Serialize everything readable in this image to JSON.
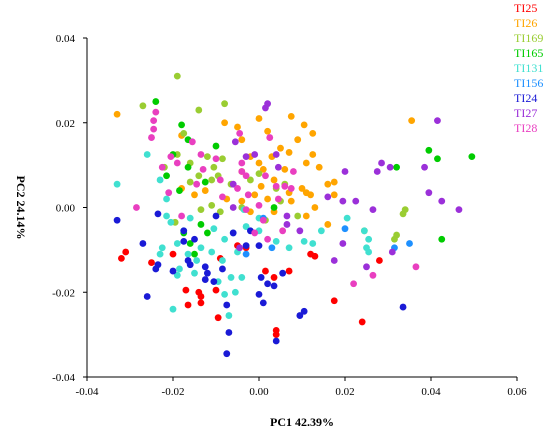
{
  "chart_data": {
    "type": "scatter",
    "xlabel": "PC1 42.39%",
    "ylabel": "PC2 24.14%",
    "xlim": [
      -0.04,
      0.06
    ],
    "ylim": [
      -0.04,
      0.04
    ],
    "x_ticks": [
      "-0.04",
      "-0.02",
      "0.00",
      "0.02",
      "0.04",
      "0.06"
    ],
    "y_ticks": [
      "0.04",
      "0.02",
      "0.00",
      "-0.02",
      "-0.04"
    ],
    "legend_position": "top-right",
    "series": [
      {
        "name": "TI25",
        "color": "#ff0000",
        "points": [
          [
            -0.032,
            -0.012
          ],
          [
            -0.031,
            -0.0105
          ],
          [
            -0.025,
            -0.013
          ],
          [
            -0.02,
            -0.011
          ],
          [
            -0.017,
            -0.0195
          ],
          [
            -0.014,
            -0.02
          ],
          [
            -0.0165,
            -0.023
          ],
          [
            -0.0135,
            -0.0225
          ],
          [
            -0.01,
            -0.0195
          ],
          [
            -0.0095,
            -0.026
          ],
          [
            -0.0135,
            -0.021
          ],
          [
            -0.005,
            -0.009
          ],
          [
            -0.003,
            -0.0095
          ],
          [
            0.0015,
            -0.015
          ],
          [
            0.0035,
            -0.0165
          ],
          [
            0.007,
            -0.015
          ],
          [
            0.004,
            -0.029
          ],
          [
            0.004,
            -0.03
          ],
          [
            0.012,
            -0.011
          ],
          [
            0.013,
            -0.0115
          ],
          [
            0.0175,
            -0.022
          ],
          [
            0.024,
            -0.027
          ],
          [
            0.028,
            -0.0125
          ],
          [
            -0.009,
            -0.012
          ]
        ]
      },
      {
        "name": "TI26",
        "color": "#ffa500",
        "points": [
          [
            -0.033,
            0.022
          ],
          [
            -0.018,
            0.017
          ],
          [
            -0.008,
            0.02
          ],
          [
            -0.004,
            0.016
          ],
          [
            -0.005,
            0.019
          ],
          [
            0.0,
            0.021
          ],
          [
            0.002,
            0.018
          ],
          [
            -0.002,
            0.012
          ],
          [
            0.0,
            0.0105
          ],
          [
            0.001,
            0.009
          ],
          [
            0.003,
            0.012
          ],
          [
            0.005,
            0.014
          ],
          [
            0.007,
            0.013
          ],
          [
            0.009,
            0.016
          ],
          [
            0.0125,
            0.0175
          ],
          [
            0.0125,
            0.0125
          ],
          [
            0.011,
            0.0105
          ],
          [
            0.014,
            0.0095
          ],
          [
            0.006,
            0.009
          ],
          [
            0.0035,
            0.0065
          ],
          [
            0.0005,
            0.005
          ],
          [
            -0.001,
            0.003
          ],
          [
            0.002,
            0.002
          ],
          [
            0.007,
            0.0035
          ],
          [
            0.01,
            0.0045
          ],
          [
            0.011,
            0.0035
          ],
          [
            0.0075,
            0.0015
          ],
          [
            0.012,
            0.003
          ],
          [
            0.016,
            0.0055
          ],
          [
            0.0175,
            0.006
          ],
          [
            0.0175,
            0.003
          ],
          [
            0.011,
            -0.002
          ],
          [
            0.016,
            -0.004
          ],
          [
            0.0035,
            -0.001
          ],
          [
            -0.002,
            -0.001
          ],
          [
            -0.004,
            0.0015
          ],
          [
            -0.0075,
            0.002
          ],
          [
            -0.0125,
            0.004
          ],
          [
            -0.018,
            0.0045
          ],
          [
            -0.015,
            0.003
          ],
          [
            0.0355,
            0.0205
          ],
          [
            0.0075,
            0.0215
          ],
          [
            0.0105,
            0.0195
          ],
          [
            -0.004,
            0.0085
          ],
          [
            0.013,
            0.0
          ]
        ]
      },
      {
        "name": "TI169",
        "color": "#9acd32",
        "points": [
          [
            -0.019,
            0.031
          ],
          [
            -0.027,
            0.024
          ],
          [
            -0.014,
            0.023
          ],
          [
            -0.019,
            0.0125
          ],
          [
            -0.016,
            0.0105
          ],
          [
            -0.012,
            0.012
          ],
          [
            -0.0105,
            0.0095
          ],
          [
            -0.0085,
            0.0115
          ],
          [
            -0.0095,
            0.0075
          ],
          [
            -0.011,
            0.0065
          ],
          [
            -0.014,
            0.0075
          ],
          [
            -0.016,
            0.006
          ],
          [
            -0.022,
            0.0095
          ],
          [
            -0.0065,
            0.0055
          ],
          [
            -0.002,
            0.0065
          ],
          [
            0.0,
            0.008
          ],
          [
            0.004,
            0.0045
          ],
          [
            0.006,
            0.0055
          ],
          [
            -0.004,
            0.0
          ],
          [
            -0.009,
            -0.001
          ],
          [
            -0.0135,
            -0.0005
          ],
          [
            -0.0195,
            -0.0035
          ],
          [
            0.0015,
            -0.003
          ],
          [
            0.009,
            -0.002
          ],
          [
            0.0335,
            -0.0015
          ],
          [
            0.034,
            -0.0005
          ],
          [
            0.032,
            -0.0065
          ],
          [
            0.0315,
            -0.0075
          ],
          [
            0.0245,
            -0.0055
          ],
          [
            -0.008,
            0.0245
          ],
          [
            -0.0175,
            0.0175
          ],
          [
            0.005,
            0.0015
          ],
          [
            -0.011,
            0.0005
          ]
        ]
      },
      {
        "name": "TI165",
        "color": "#00cc00",
        "points": [
          [
            -0.024,
            0.025
          ],
          [
            -0.018,
            0.0195
          ],
          [
            -0.02,
            0.0125
          ],
          [
            -0.0165,
            0.0095
          ],
          [
            -0.0125,
            0.006
          ],
          [
            -0.0185,
            0.004
          ],
          [
            -0.0135,
            -0.004
          ],
          [
            -0.0175,
            -0.006
          ],
          [
            -0.015,
            -0.011
          ],
          [
            -0.012,
            -0.006
          ],
          [
            -0.016,
            -0.0085
          ],
          [
            -0.0165,
            0.016
          ],
          [
            0.0395,
            0.0135
          ],
          [
            0.0415,
            0.0115
          ],
          [
            0.0495,
            0.012
          ],
          [
            0.032,
            0.0095
          ],
          [
            0.0425,
            -0.0075
          ],
          [
            0.0035,
            0.0
          ],
          [
            -0.0215,
            0.0075
          ],
          [
            -0.01,
            0.0145
          ]
        ]
      },
      {
        "name": "TI131",
        "color": "#40e0d0",
        "points": [
          [
            -0.033,
            0.0055
          ],
          [
            -0.026,
            0.0125
          ],
          [
            -0.023,
            0.0065
          ],
          [
            -0.0215,
            0.002
          ],
          [
            -0.0215,
            -0.002
          ],
          [
            -0.0205,
            -0.0035
          ],
          [
            -0.0225,
            -0.0095
          ],
          [
            -0.023,
            -0.011
          ],
          [
            -0.019,
            -0.0085
          ],
          [
            -0.0185,
            -0.0145
          ],
          [
            -0.019,
            -0.016
          ],
          [
            -0.015,
            -0.0155
          ],
          [
            -0.0165,
            -0.011
          ],
          [
            -0.0135,
            -0.0095
          ],
          [
            -0.011,
            -0.0105
          ],
          [
            -0.0085,
            -0.0125
          ],
          [
            -0.008,
            -0.0075
          ],
          [
            -0.006,
            -0.006
          ],
          [
            -0.005,
            -0.0105
          ],
          [
            -0.004,
            -0.0165
          ],
          [
            -0.0065,
            -0.0165
          ],
          [
            -0.0095,
            -0.0175
          ],
          [
            -0.02,
            -0.024
          ],
          [
            -0.0145,
            -0.0125
          ],
          [
            -0.008,
            -0.0205
          ],
          [
            -0.007,
            -0.0255
          ],
          [
            -0.0055,
            -0.02
          ],
          [
            -0.003,
            -0.0045
          ],
          [
            0.0,
            -0.0055
          ],
          [
            0.004,
            -0.008
          ],
          [
            0.007,
            -0.0095
          ],
          [
            0.0105,
            -0.008
          ],
          [
            0.0145,
            -0.0055
          ],
          [
            0.0205,
            -0.0025
          ],
          [
            0.0255,
            -0.0075
          ],
          [
            0.025,
            -0.0095
          ],
          [
            0.0255,
            -0.0105
          ],
          [
            0.0,
            -0.0025
          ],
          [
            -0.0035,
            -0.0005
          ],
          [
            -0.016,
            -0.0025
          ],
          [
            -0.0175,
            -0.0055
          ],
          [
            -0.0105,
            -0.005
          ],
          [
            0.0245,
            -0.0055
          ],
          [
            0.0125,
            -0.0085
          ]
        ]
      },
      {
        "name": "TI156",
        "color": "#1e90ff",
        "points": [
          [
            0.0315,
            -0.0095
          ],
          [
            0.035,
            -0.0085
          ],
          [
            0.003,
            -0.0095
          ],
          [
            0.001,
            -0.0025
          ],
          [
            -0.003,
            -0.011
          ],
          [
            0.02,
            -0.005
          ]
        ]
      },
      {
        "name": "TI24",
        "color": "#1a1ad6",
        "points": [
          [
            -0.033,
            -0.003
          ],
          [
            -0.027,
            -0.0085
          ],
          [
            -0.0235,
            -0.0135
          ],
          [
            -0.024,
            -0.0145
          ],
          [
            -0.026,
            -0.021
          ],
          [
            -0.02,
            -0.015
          ],
          [
            -0.0175,
            -0.0055
          ],
          [
            -0.015,
            -0.0075
          ],
          [
            -0.0175,
            -0.008
          ],
          [
            -0.0165,
            -0.0125
          ],
          [
            -0.016,
            -0.0135
          ],
          [
            -0.0125,
            -0.014
          ],
          [
            -0.012,
            -0.0155
          ],
          [
            -0.0085,
            -0.0145
          ],
          [
            -0.0105,
            -0.0175
          ],
          [
            -0.0125,
            -0.017
          ],
          [
            -0.0075,
            -0.023
          ],
          [
            -0.007,
            -0.0295
          ],
          [
            -0.0075,
            -0.0345
          ],
          [
            -0.003,
            -0.009
          ],
          [
            0.0,
            -0.009
          ],
          [
            0.0005,
            -0.0165
          ],
          [
            0.002,
            -0.018
          ],
          [
            0.0035,
            -0.0185
          ],
          [
            0.001,
            -0.0225
          ],
          [
            0.0,
            -0.0205
          ],
          [
            0.004,
            -0.0315
          ],
          [
            0.0105,
            -0.0245
          ],
          [
            0.0095,
            -0.0255
          ],
          [
            0.0335,
            -0.0235
          ],
          [
            -0.002,
            -0.0055
          ],
          [
            0.0055,
            -0.0155
          ],
          [
            -0.01,
            -0.002
          ],
          [
            -0.0235,
            -0.0015
          ],
          [
            -0.006,
            -0.006
          ]
        ]
      },
      {
        "name": "TI27",
        "color": "#9b30d9",
        "points": [
          [
            0.0285,
            0.0105
          ],
          [
            0.0305,
            0.0095
          ],
          [
            0.0415,
            0.0205
          ],
          [
            0.0385,
            0.0095
          ],
          [
            0.0275,
            0.0085
          ],
          [
            0.02,
            0.0085
          ],
          [
            0.016,
            0.0025
          ],
          [
            0.0195,
            0.0015
          ],
          [
            0.0225,
            0.0015
          ],
          [
            0.0265,
            -0.0005
          ],
          [
            0.0395,
            0.0035
          ],
          [
            0.0425,
            0.0015
          ],
          [
            0.0465,
            -0.0005
          ],
          [
            0.0015,
            0.0235
          ],
          [
            0.002,
            0.0245
          ],
          [
            -0.0055,
            0.0155
          ],
          [
            -0.003,
            0.012
          ],
          [
            -0.001,
            0.0125
          ],
          [
            0.004,
            0.0125
          ],
          [
            0.0045,
            0.0095
          ],
          [
            -0.006,
            0.0055
          ],
          [
            0.0065,
            -0.002
          ],
          [
            0.0065,
            -0.004
          ],
          [
            0.0095,
            -0.0055
          ],
          [
            0.0195,
            -0.0085
          ],
          [
            0.0175,
            -0.0125
          ],
          [
            0.025,
            -0.014
          ],
          [
            0.031,
            -0.0105
          ],
          [
            -0.0045,
            -0.0095
          ],
          [
            -0.006,
            0.0
          ]
        ]
      },
      {
        "name": "TI28",
        "color": "#e93fc0",
        "points": [
          [
            -0.0285,
            0.0
          ],
          [
            -0.0245,
            0.0205
          ],
          [
            -0.0245,
            0.0185
          ],
          [
            -0.024,
            0.0225
          ],
          [
            -0.025,
            0.0165
          ],
          [
            -0.0205,
            0.012
          ],
          [
            -0.0225,
            0.0095
          ],
          [
            -0.021,
            0.0035
          ],
          [
            -0.019,
            0.0105
          ],
          [
            -0.0155,
            0.0155
          ],
          [
            -0.0135,
            0.0125
          ],
          [
            -0.013,
            0.009
          ],
          [
            -0.0145,
            0.0055
          ],
          [
            -0.009,
            0.0065
          ],
          [
            -0.0085,
            0.0025
          ],
          [
            -0.004,
            0.0105
          ],
          [
            -0.004,
            0.0085
          ],
          [
            -0.005,
            0.0045
          ],
          [
            -0.003,
            0.0075
          ],
          [
            -0.0025,
            0.003
          ],
          [
            -0.003,
            -0.0005
          ],
          [
            0.0,
            0.0005
          ],
          [
            0.004,
            0.005
          ],
          [
            0.006,
            0.005
          ],
          [
            0.001,
            -0.003
          ],
          [
            0.0055,
            -0.0055
          ],
          [
            0.002,
            -0.0075
          ],
          [
            0.0045,
            0.002
          ],
          [
            0.0075,
            0.0045
          ],
          [
            0.008,
            0.0085
          ],
          [
            0.0015,
            0.0075
          ],
          [
            0.0025,
            0.0165
          ],
          [
            -0.0045,
            0.0175
          ],
          [
            -0.01,
            0.0115
          ],
          [
            0.0365,
            -0.014
          ],
          [
            0.0265,
            -0.016
          ],
          [
            -0.018,
            -0.002
          ],
          [
            -0.001,
            -0.006
          ],
          [
            0.022,
            -0.018
          ]
        ]
      }
    ]
  }
}
